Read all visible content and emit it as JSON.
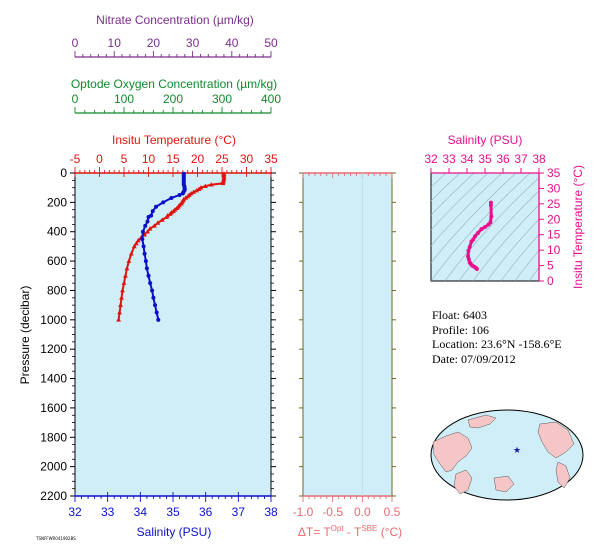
{
  "info": {
    "float": "Float:  6403",
    "profile": "Profile:  106",
    "location": "Location:  23.6°N  -158.6°E",
    "date": "Date:  07/09/2012"
  },
  "footer_tag": "TSNFFWR041902BS",
  "colors": {
    "background_plot": "#cfeef7",
    "temperature": "#e0140f",
    "salinity": "#0a10c8",
    "nitrate": "#7b2d8b",
    "oxygen": "#118a2b",
    "inset": "#e8108c",
    "delta": "#e86c72",
    "delta_axis": "#6b6b2b"
  },
  "chart_data": [
    {
      "type": "line",
      "id": "main_profile",
      "y": {
        "label": "Pressure (decibar)",
        "range": [
          0,
          2200
        ],
        "ticks": [
          0,
          200,
          400,
          600,
          800,
          1000,
          1200,
          1400,
          1600,
          1800,
          2000,
          2200
        ],
        "inverted": true
      },
      "axes_top": [
        {
          "label": "Nitrate Concentration (µm/kg)",
          "range": [
            0,
            50
          ],
          "ticks": [
            0,
            10,
            20,
            30,
            40,
            50
          ]
        },
        {
          "label": "Optode Oxygen Concentration (µm/kg)",
          "range": [
            0,
            400
          ],
          "ticks": [
            0,
            100,
            200,
            300,
            400
          ]
        },
        {
          "label": "Insitu Temperature (°C)",
          "range": [
            -5,
            35
          ],
          "ticks": [
            -5,
            0,
            5,
            10,
            15,
            20,
            25,
            30,
            35
          ]
        }
      ],
      "axis_bottom": {
        "label": "Salinity (PSU)",
        "range": [
          32,
          38
        ],
        "ticks": [
          32,
          33,
          34,
          35,
          36,
          37,
          38
        ]
      },
      "series": [
        {
          "name": "Insitu Temperature (°C)",
          "pressure": [
            5,
            10,
            20,
            30,
            40,
            50,
            60,
            70,
            80,
            90,
            100,
            110,
            120,
            130,
            140,
            150,
            160,
            170,
            180,
            190,
            200,
            210,
            220,
            230,
            240,
            250,
            260,
            270,
            280,
            290,
            300,
            320,
            340,
            360,
            380,
            400,
            420,
            440,
            460,
            480,
            500,
            550,
            600,
            650,
            700,
            750,
            800,
            850,
            900,
            950,
            1000
          ],
          "values": [
            25.4,
            25.4,
            25.4,
            25.4,
            25.4,
            25.3,
            25.3,
            25.2,
            22.8,
            21.6,
            20.7,
            20.3,
            19.8,
            19.2,
            18.7,
            18.3,
            18.0,
            17.6,
            17.2,
            17.0,
            16.8,
            16.7,
            16.3,
            16.1,
            15.8,
            15.4,
            15.1,
            14.7,
            14.4,
            13.9,
            13.7,
            12.8,
            11.9,
            11.2,
            10.3,
            9.8,
            9.2,
            8.5,
            7.9,
            7.5,
            7.1,
            6.5,
            6.0,
            5.6,
            5.3,
            5.0,
            4.7,
            4.5,
            4.3,
            4.1,
            3.9
          ]
        },
        {
          "name": "Salinity (PSU)",
          "pressure": [
            5,
            10,
            20,
            30,
            40,
            50,
            60,
            70,
            80,
            90,
            100,
            110,
            120,
            130,
            140,
            150,
            170,
            200,
            230,
            260,
            290,
            300,
            330,
            360,
            400,
            450,
            500,
            550,
            600,
            650,
            700,
            750,
            800,
            850,
            900,
            950,
            1000
          ],
          "values": [
            35.33,
            35.33,
            35.33,
            35.33,
            35.33,
            35.33,
            35.33,
            35.33,
            35.33,
            35.35,
            35.35,
            35.36,
            35.35,
            35.32,
            35.3,
            35.2,
            34.95,
            34.7,
            34.48,
            34.38,
            34.33,
            34.25,
            34.22,
            34.15,
            34.08,
            34.06,
            34.1,
            34.13,
            34.17,
            34.2,
            34.25,
            34.3,
            34.36,
            34.4,
            34.45,
            34.5,
            34.55
          ]
        }
      ]
    },
    {
      "type": "line",
      "id": "delta_panel",
      "xlabel": "ΔT= T^Opt - T^SBE (°C)",
      "range": [
        -1.0,
        0.5
      ],
      "ticks": [
        -1.0,
        -0.5,
        0.0,
        0.5
      ],
      "tick_labels": [
        "-1.0",
        "-0.5",
        "0.0",
        "0.5"
      ],
      "series": []
    },
    {
      "type": "scatter",
      "id": "ts_inset",
      "xlabel": "Salinity (PSU)",
      "ylabel": "Insitu Temperature (°C)",
      "x_range": [
        32,
        38
      ],
      "y_range": [
        0,
        35
      ],
      "x_ticks": [
        32,
        33,
        34,
        35,
        36,
        37,
        38
      ],
      "y_ticks": [
        0,
        5,
        10,
        15,
        20,
        25,
        30,
        35
      ],
      "series": [
        {
          "name": "T-S",
          "x": [
            35.33,
            35.33,
            35.35,
            35.3,
            35.2,
            35.0,
            34.8,
            34.6,
            34.45,
            34.35,
            34.25,
            34.15,
            34.08,
            34.06,
            34.1,
            34.15,
            34.2,
            34.3,
            34.4,
            34.5,
            34.55
          ],
          "y": [
            25.4,
            24.5,
            21.0,
            19.0,
            18.3,
            17.5,
            16.8,
            15.5,
            14.5,
            13.5,
            12.8,
            11.0,
            9.8,
            8.0,
            7.1,
            6.0,
            5.6,
            5.0,
            4.6,
            4.2,
            3.9
          ]
        }
      ]
    },
    {
      "type": "map",
      "id": "location_map",
      "marker": {
        "lat": 23.6,
        "lon": -158.6,
        "symbol": "★"
      }
    }
  ]
}
